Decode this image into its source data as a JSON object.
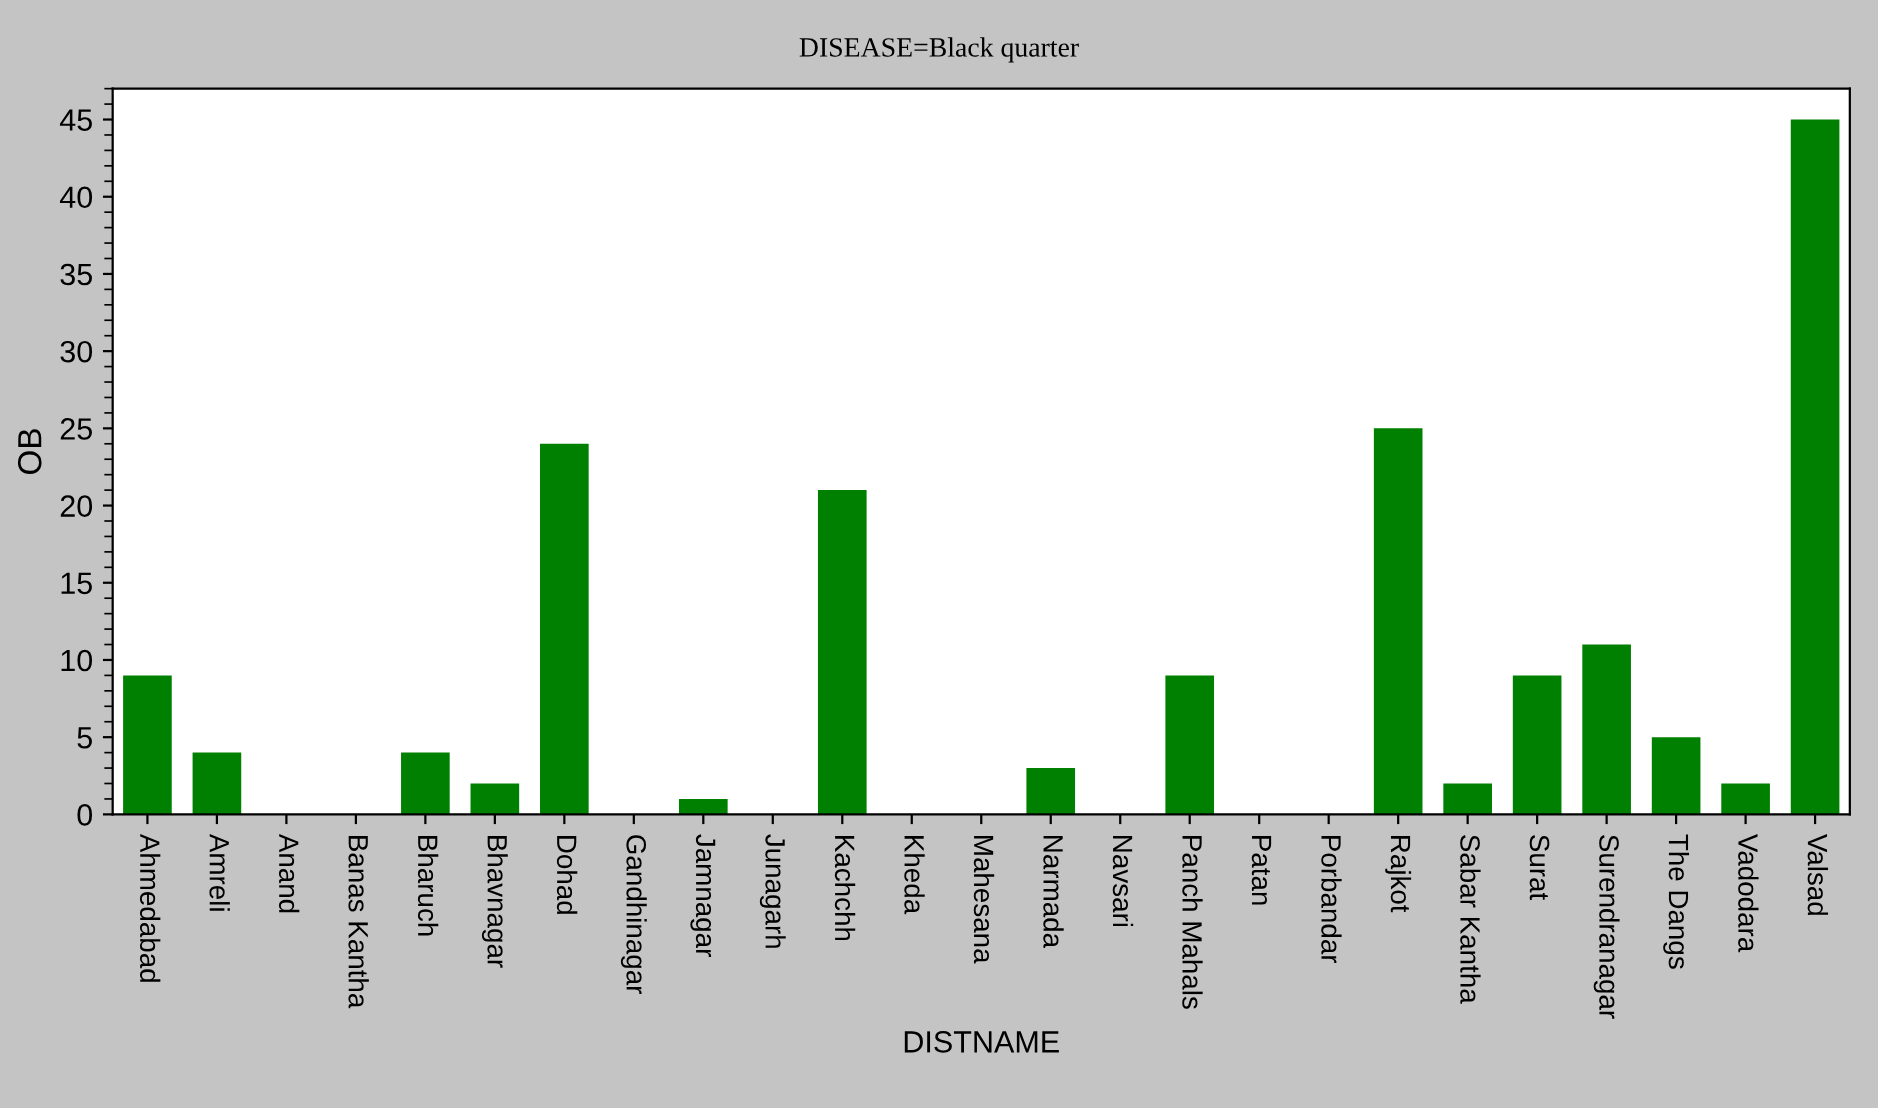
{
  "chart_data": {
    "type": "bar",
    "title": "DISEASE=Black quarter",
    "xlabel": "DISTNAME",
    "ylabel": "OB",
    "categories": [
      "Ahmedabad",
      "Amreli",
      "Anand",
      "Banas Kantha",
      "Bharuch",
      "Bhavnagar",
      "Dohad",
      "Gandhinagar",
      "Jamnagar",
      "Junagarh",
      "Kachchh",
      "Kheda",
      "Mahesana",
      "Narmada",
      "Navsari",
      "Panch Mahals",
      "Patan",
      "Porbandar",
      "Rajkot",
      "Sabar Kantha",
      "Surat",
      "Surendranagar",
      "The Dangs",
      "Vadodara",
      "Valsad"
    ],
    "values": [
      9,
      4,
      0,
      0,
      4,
      2,
      24,
      0,
      1,
      0,
      21,
      0,
      0,
      3,
      0,
      9,
      0,
      0,
      25,
      2,
      9,
      11,
      5,
      2,
      45
    ],
    "color": "#008000",
    "ylim": [
      0,
      47
    ],
    "yticks": [
      0,
      5,
      10,
      15,
      20,
      25,
      30,
      35,
      40,
      45
    ],
    "grid": false,
    "legend": false
  }
}
